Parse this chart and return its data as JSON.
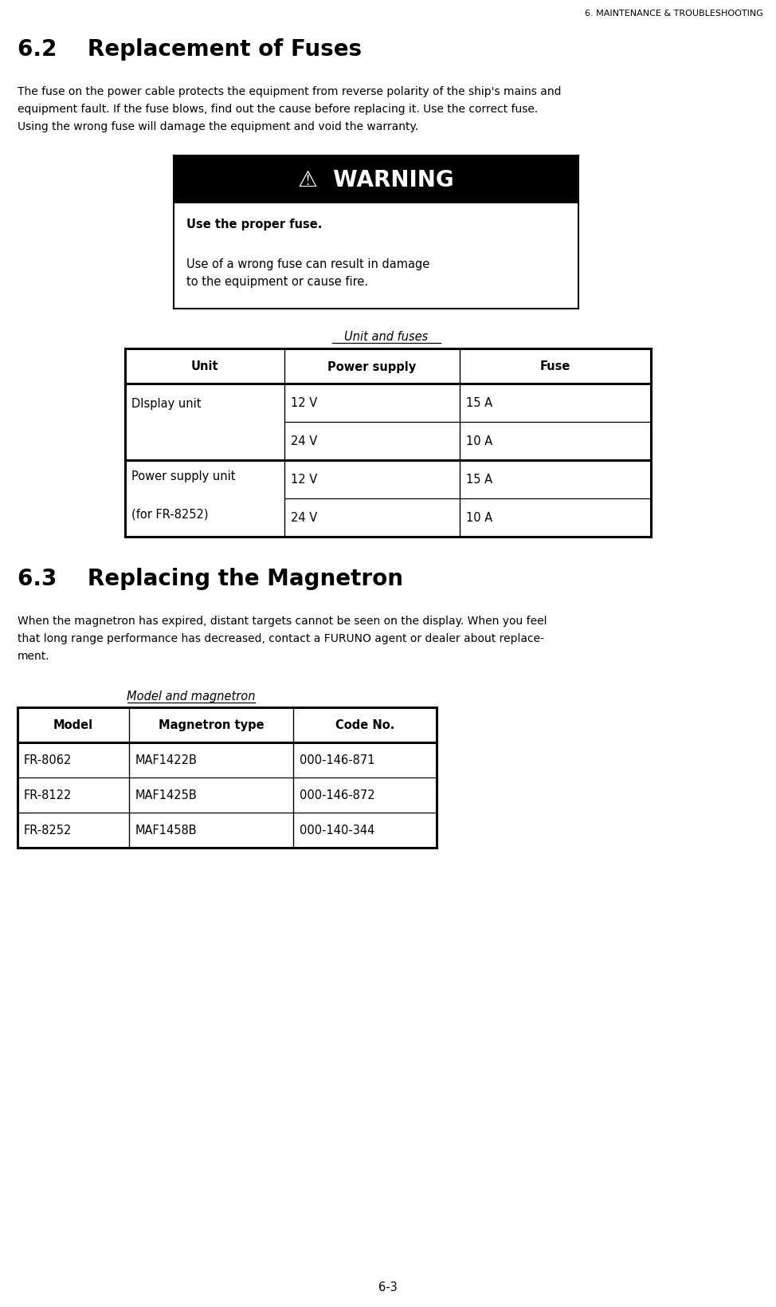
{
  "page_header": "6. MAINTENANCE & TROUBLESHOOTING",
  "section_62_title": "6.2    Replacement of Fuses",
  "section_62_body": [
    "The fuse on the power cable protects the equipment from reverse polarity of the ship's mains and",
    "equipment fault. If the fuse blows, find out the cause before replacing it. Use the correct fuse.",
    "Using the wrong fuse will damage the equipment and void the warranty."
  ],
  "warning_title": "⚠  WARNING",
  "warning_bold": "Use the proper fuse.",
  "warning_body_lines": [
    "Use of a wrong fuse can result in damage",
    "to the equipment or cause fire."
  ],
  "table1_title": "Unit and fuses",
  "table1_headers": [
    "Unit",
    "Power supply",
    "Fuse"
  ],
  "table1_rows": [
    [
      "DIsplay unit",
      "12 V",
      "15 A"
    ],
    [
      "",
      "24 V",
      "10 A"
    ],
    [
      "Power supply unit",
      "12 V",
      "15 A"
    ],
    [
      "(for FR-8252)",
      "24 V",
      "10 A"
    ]
  ],
  "section_63_title": "6.3    Replacing the Magnetron",
  "section_63_body": [
    "When the magnetron has expired, distant targets cannot be seen on the display. When you feel",
    "that long range performance has decreased, contact a FURUNO agent or dealer about replace-",
    "ment."
  ],
  "table2_title": "Model and magnetron",
  "table2_headers": [
    "Model",
    "Magnetron type",
    "Code No."
  ],
  "table2_rows": [
    [
      "FR-8062",
      "MAF1422B",
      "000-146-871"
    ],
    [
      "FR-8122",
      "MAF1425B",
      "000-146-872"
    ],
    [
      "FR-8252",
      "MAF1458B",
      "000-140-344"
    ]
  ],
  "page_footer": "6-3",
  "bg_color": "#ffffff",
  "text_color": "#000000"
}
